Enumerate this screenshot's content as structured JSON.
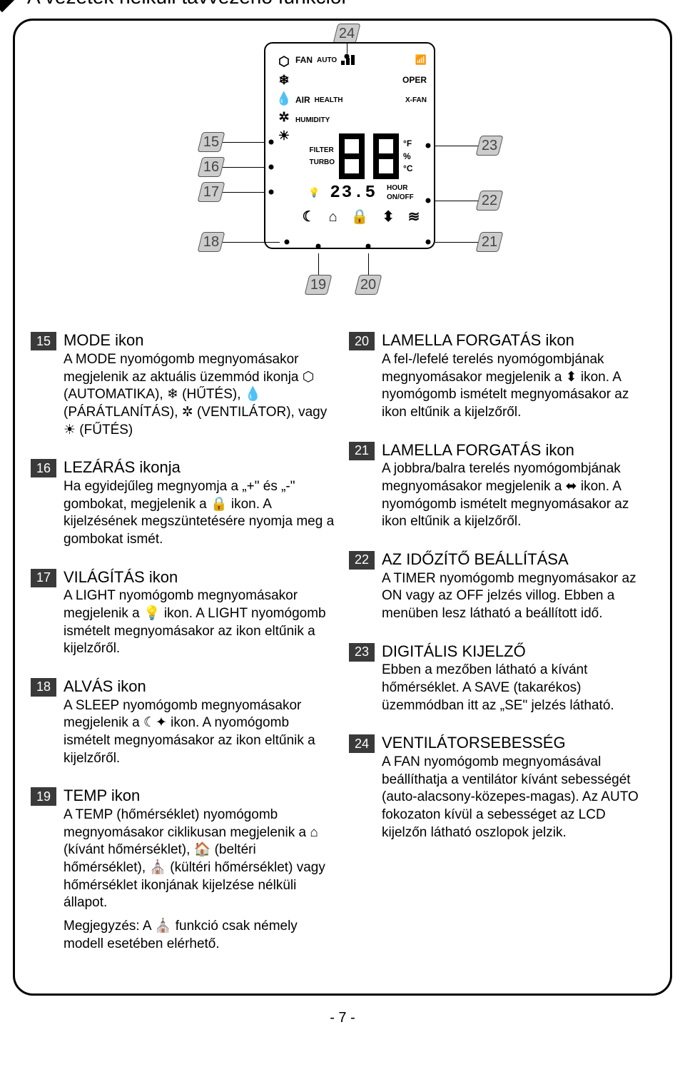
{
  "title": "A vezeték nélküli távvezérlő funkciói",
  "page_number": "- 7 -",
  "lcd": {
    "labels": {
      "fan": "FAN",
      "auto": "AUTO",
      "oper": "OPER",
      "air": "AIR",
      "health": "HEALTH",
      "xfan": "X-FAN",
      "humidity": "HUMIDITY",
      "filter": "FILTER",
      "turbo": "TURBO",
      "f": "°F",
      "percent": "%",
      "c": "°C",
      "hour": "HOUR",
      "onoff": "ON/OFF"
    },
    "small_value": "23.5"
  },
  "callouts": {
    "c15": "15",
    "c16": "16",
    "c17": "17",
    "c18": "18",
    "c19": "19",
    "c20": "20",
    "c21": "21",
    "c22": "22",
    "c23": "23",
    "c24": "24"
  },
  "left": [
    {
      "num": "15",
      "title": "MODE ikon",
      "text": "A MODE nyomógomb megnyomásakor megjelenik az aktuális üzemmód ikonja ⬡ (AUTOMATIKA), ❄ (HŰTÉS), 💧 (PÁRÁTLANÍTÁS), ✲ (VENTILÁTOR), vagy ☀ (FŰTÉS)"
    },
    {
      "num": "16",
      "title": "LEZÁRÁS ikonja",
      "text": "Ha egyidejűleg megnyomja a „+\" és „-\" gombokat, megjelenik a 🔒 ikon. A kijelzésének megszüntetésére nyomja meg a gombokat ismét."
    },
    {
      "num": "17",
      "title": "VILÁGÍTÁS ikon",
      "text": "A LIGHT nyomógomb megnyomásakor megjelenik a 💡 ikon. A LIGHT nyomógomb ismételt megnyomásakor az ikon eltűnik a kijelzőről."
    },
    {
      "num": "18",
      "title": "ALVÁS ikon",
      "text": "A SLEEP nyomógomb megnyomásakor megjelenik a ☾✦ ikon. A nyomógomb ismételt megnyomásakor az ikon eltűnik a kijelzőről."
    },
    {
      "num": "19",
      "title": "TEMP ikon",
      "text": "A TEMP (hőmérséklet) nyomógomb megnyomásakor ciklikusan megjelenik a ⌂ (kívánt hőmérséklet), 🏠 (beltéri hőmérséklet), ⛪ (kültéri hőmérséklet) vagy hőmérséklet ikonjának kijelzése nélküli állapot.",
      "note": "Megjegyzés: A ⛪ funkció csak némely modell esetében elérhető."
    }
  ],
  "right": [
    {
      "num": "20",
      "title": "LAMELLA FORGATÁS ikon",
      "text": "A fel-/lefelé terelés nyomógombjának megnyomásakor megjelenik a ⬍ ikon. A nyomógomb ismételt megnyomásakor az ikon eltűnik a kijelzőről."
    },
    {
      "num": "21",
      "title": "LAMELLA FORGATÁS ikon",
      "text": "A jobbra/balra terelés nyomógombjának megnyomásakor megjelenik a ⬌ ikon. A nyomógomb ismételt megnyomásakor az ikon eltűnik a kijelzőről."
    },
    {
      "num": "22",
      "title": "AZ IDŐZÍTŐ BEÁLLÍTÁSA",
      "text": "A TIMER nyomógomb megnyomásakor az ON vagy az OFF jelzés villog. Ebben a menüben lesz látható a beállított idő."
    },
    {
      "num": "23",
      "title": "DIGITÁLIS KIJELZŐ",
      "text": "Ebben a mezőben látható a kívánt hőmérséklet. A SAVE (takarékos) üzemmódban itt az „SE\" jelzés látható."
    },
    {
      "num": "24",
      "title": "VENTILÁTORSEBESSÉG",
      "text": "A FAN nyomógomb megnyomásával beállíthatja a ventilátor kívánt sebességét (auto-alacsony-közepes-magas). Az AUTO fokozaton kívül a sebességet az LCD kijelzőn látható oszlopok jelzik."
    }
  ]
}
